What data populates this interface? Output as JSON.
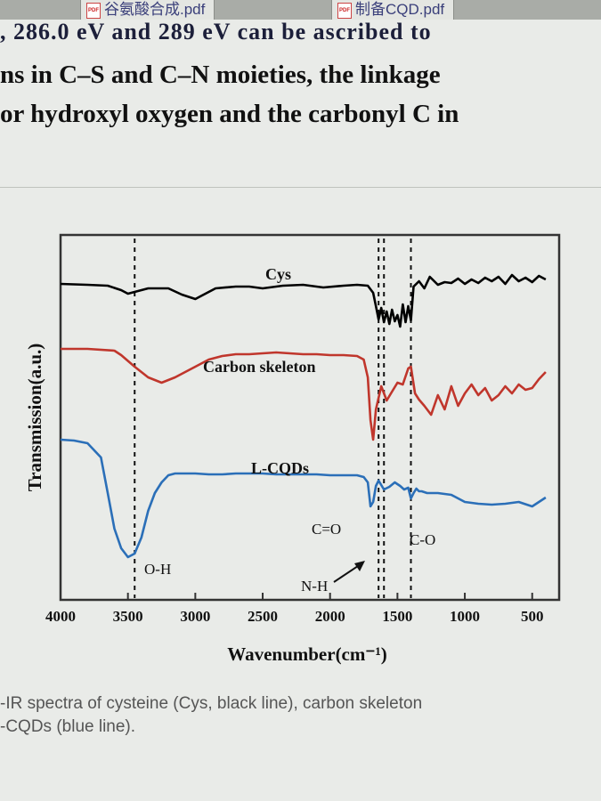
{
  "tabs": [
    {
      "label": "谷氨酸合成.pdf"
    },
    {
      "label": "制备CQD.pdf"
    }
  ],
  "document": {
    "cut_line": ", 286.0 eV and 289 eV can be ascribed to",
    "line1": "ns in C–S and C–N moieties, the linkage",
    "line2": "or hydroxyl oxygen and the carbonyl C in",
    "caption_line1": "-IR spectra of cysteine (Cys, black line), carbon skeleton",
    "caption_line2": "-CQDs (blue line)."
  },
  "chart_data": {
    "type": "line",
    "xlabel": "Wavenumber(cm⁻¹)",
    "ylabel": "Transmission(a.u.)",
    "xlim": [
      4000,
      300
    ],
    "x_ticks": [
      4000,
      3500,
      3000,
      2500,
      2000,
      1500,
      1000,
      500
    ],
    "grid": false,
    "colors": {
      "cys": "#000000",
      "carbon": "#c0362c",
      "lcqds": "#2b6fb8"
    },
    "series": [
      {
        "name": "Cys",
        "label": "Cys",
        "x": [
          4000,
          3800,
          3650,
          3550,
          3500,
          3450,
          3350,
          3200,
          3100,
          3000,
          2950,
          2850,
          2700,
          2600,
          2500,
          2350,
          2200,
          2050,
          1900,
          1800,
          1720,
          1680,
          1660,
          1640,
          1620,
          1600,
          1580,
          1560,
          1540,
          1520,
          1500,
          1480,
          1460,
          1440,
          1420,
          1400,
          1380,
          1340,
          1300,
          1260,
          1200,
          1150,
          1100,
          1050,
          1000,
          950,
          900,
          850,
          800,
          750,
          700,
          650,
          600,
          550,
          500,
          450,
          400
        ],
        "y": [
          55,
          56,
          57,
          62,
          66,
          64,
          60,
          60,
          67,
          72,
          68,
          60,
          58,
          58,
          60,
          57,
          56,
          59,
          57,
          56,
          57,
          65,
          80,
          95,
          82,
          98,
          86,
          100,
          84,
          97,
          90,
          103,
          78,
          98,
          80,
          96,
          58,
          52,
          60,
          47,
          56,
          53,
          54,
          49,
          55,
          50,
          54,
          48,
          52,
          47,
          55,
          45,
          52,
          48,
          53,
          46,
          50
        ]
      },
      {
        "name": "Carbon skeleton",
        "label": "Carbon skeleton",
        "x": [
          4000,
          3800,
          3600,
          3550,
          3450,
          3350,
          3250,
          3150,
          3000,
          2900,
          2800,
          2700,
          2600,
          2500,
          2400,
          2300,
          2200,
          2100,
          2000,
          1900,
          1800,
          1750,
          1720,
          1700,
          1680,
          1660,
          1620,
          1580,
          1540,
          1500,
          1460,
          1420,
          1400,
          1370,
          1340,
          1300,
          1250,
          1200,
          1150,
          1100,
          1050,
          1000,
          950,
          900,
          850,
          800,
          750,
          700,
          650,
          600,
          550,
          500,
          450,
          400
        ],
        "y": [
          128,
          128,
          130,
          135,
          148,
          160,
          166,
          160,
          148,
          140,
          136,
          134,
          134,
          133,
          132,
          133,
          134,
          134,
          135,
          135,
          136,
          140,
          160,
          208,
          230,
          196,
          170,
          186,
          176,
          166,
          168,
          150,
          148,
          178,
          185,
          192,
          202,
          180,
          196,
          170,
          192,
          178,
          168,
          180,
          172,
          186,
          180,
          170,
          178,
          168,
          174,
          172,
          162,
          154
        ]
      },
      {
        "name": "L-CQDs",
        "label": "L-CQDs",
        "x": [
          4000,
          3900,
          3800,
          3700,
          3650,
          3600,
          3550,
          3500,
          3450,
          3400,
          3350,
          3300,
          3250,
          3200,
          3150,
          3100,
          3000,
          2900,
          2800,
          2700,
          2600,
          2500,
          2400,
          2300,
          2200,
          2100,
          2000,
          1900,
          1800,
          1750,
          1720,
          1700,
          1680,
          1660,
          1640,
          1600,
          1560,
          1520,
          1480,
          1450,
          1420,
          1400,
          1380,
          1360,
          1340,
          1320,
          1280,
          1200,
          1100,
          1000,
          900,
          800,
          700,
          600,
          500,
          450,
          400
        ],
        "y": [
          230,
          231,
          234,
          250,
          290,
          330,
          352,
          362,
          358,
          340,
          310,
          290,
          278,
          270,
          268,
          268,
          268,
          269,
          269,
          268,
          268,
          268,
          269,
          269,
          269,
          269,
          270,
          270,
          270,
          272,
          278,
          305,
          300,
          282,
          276,
          286,
          283,
          278,
          282,
          286,
          284,
          296,
          290,
          285,
          288,
          288,
          290,
          290,
          292,
          300,
          302,
          303,
          302,
          300,
          305,
          300,
          295
        ]
      }
    ],
    "annotations": {
      "oh": "O-H",
      "co_double": "C=O",
      "nh": "N-H",
      "co_single": "C-O"
    },
    "reference_lines_x": [
      3450,
      1640,
      1600,
      1400
    ]
  }
}
